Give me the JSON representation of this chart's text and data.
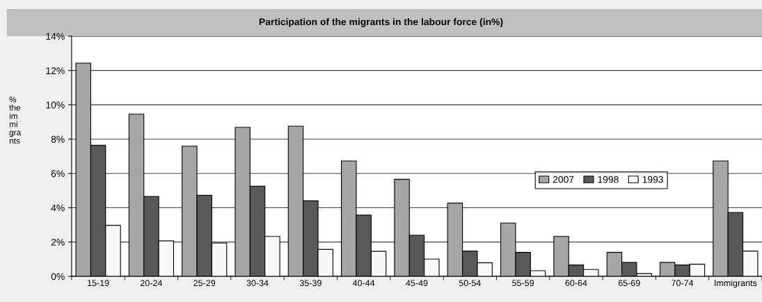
{
  "chart_data": {
    "type": "bar",
    "title": "Participation of the migrants in the labour force (in%)",
    "ylabel": "%\nthe\nim\nmi\ngra\nnts",
    "categories": [
      "15-19",
      "20-24",
      "25-29",
      "30-34",
      "35-39",
      "40-44",
      "45-49",
      "50-54",
      "55-59",
      "60-64",
      "65-69",
      "70-74",
      "Immigrants"
    ],
    "series": [
      {
        "name": "2007",
        "color": "#a6a6a6",
        "values": [
          12.43,
          9.46,
          7.59,
          8.69,
          8.76,
          6.73,
          5.66,
          4.27,
          3.11,
          2.33,
          1.4,
          0.81,
          6.73
        ]
      },
      {
        "name": "1998",
        "color": "#595959",
        "values": [
          7.64,
          4.66,
          4.73,
          5.26,
          4.4,
          3.57,
          2.4,
          1.47,
          1.4,
          0.66,
          0.81,
          0.66,
          3.73
        ]
      },
      {
        "name": "1993",
        "color": "#f8f8f8",
        "values": [
          2.97,
          2.07,
          1.94,
          2.33,
          1.57,
          1.46,
          1.01,
          0.79,
          0.33,
          0.4,
          0.16,
          0.71,
          1.47
        ]
      }
    ],
    "ylim": [
      0,
      14
    ],
    "yticks": [
      {
        "value": 0,
        "label": "0%"
      },
      {
        "value": 2,
        "label": "2%"
      },
      {
        "value": 4,
        "label": "4%"
      },
      {
        "value": 6,
        "label": "6%"
      },
      {
        "value": 8,
        "label": "8%"
      },
      {
        "value": 10,
        "label": "10%"
      },
      {
        "value": 12,
        "label": "12%"
      },
      {
        "value": 14,
        "label": "14%"
      }
    ],
    "grid": "y",
    "legend": "center right"
  }
}
